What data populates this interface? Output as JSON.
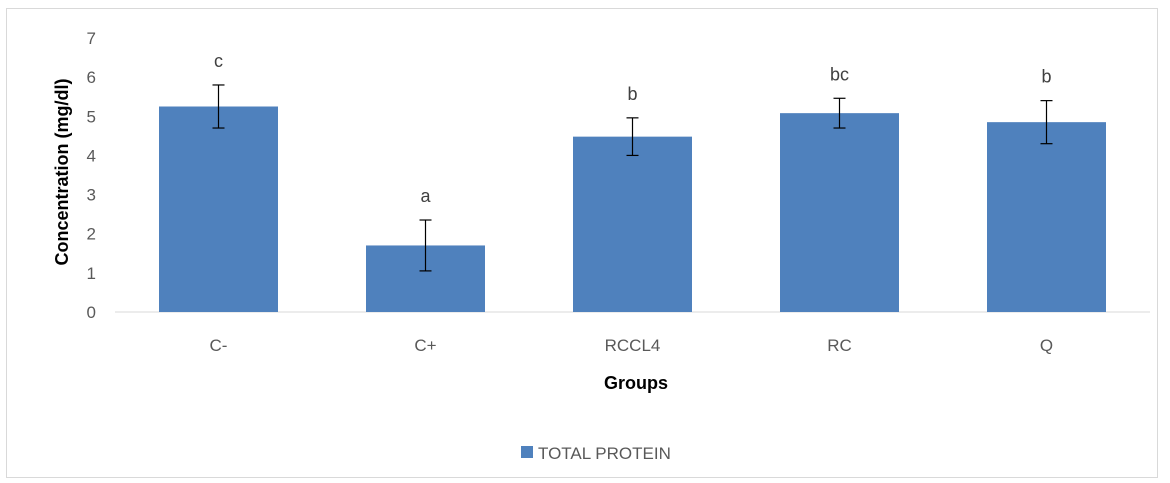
{
  "chart_data": {
    "type": "bar",
    "categories": [
      "C-",
      "C+",
      "RCCL4",
      "RC",
      "Q"
    ],
    "series": [
      {
        "name": "TOTAL PROTEIN",
        "values": [
          5.25,
          1.7,
          4.48,
          5.08,
          4.85
        ],
        "error": [
          0.55,
          0.65,
          0.48,
          0.38,
          0.55
        ],
        "significance": [
          "c",
          "a",
          "b",
          "bc",
          "b"
        ],
        "color": "#4f81bd"
      }
    ],
    "title": "",
    "xlabel": "Groups",
    "ylabel": "Concentration (mg/dl)",
    "ylim": [
      0,
      7
    ],
    "yticks": [
      "0",
      "1",
      "2",
      "3",
      "4",
      "5",
      "6",
      "7"
    ],
    "grid": false,
    "legend": "bottom"
  }
}
